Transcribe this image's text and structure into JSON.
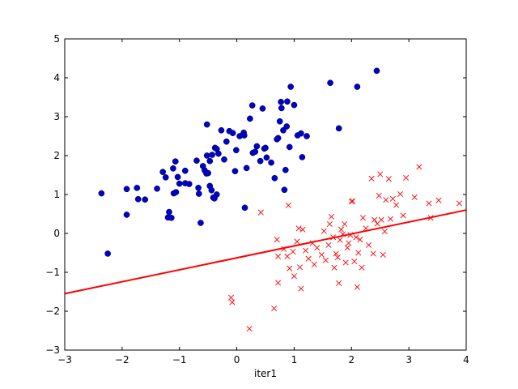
{
  "chart_data": {
    "type": "scatter",
    "title": "",
    "xlabel": "iter1",
    "ylabel": "",
    "xlim": [
      -3,
      4
    ],
    "ylim": [
      -3,
      5
    ],
    "xticks": [
      "−3",
      "−2",
      "−1",
      "0",
      "1",
      "2",
      "3",
      "4"
    ],
    "yticks": [
      "−3",
      "−2",
      "−1",
      "0",
      "1",
      "2",
      "3",
      "4",
      "5"
    ],
    "grid": false,
    "legend": "none",
    "series": [
      {
        "marker": "circle",
        "color": "#0000cc",
        "points": [
          [
            -2.36,
            1.03
          ],
          [
            -2.25,
            -0.52
          ],
          [
            -1.92,
            1.14
          ],
          [
            -1.92,
            0.48
          ],
          [
            -1.74,
            1.17
          ],
          [
            -1.72,
            0.88
          ],
          [
            -1.6,
            0.87
          ],
          [
            -1.39,
            1.15
          ],
          [
            -1.29,
            1.58
          ],
          [
            -1.24,
            1.44
          ],
          [
            -1.18,
            0.55
          ],
          [
            -1.2,
            0.41
          ],
          [
            -1.14,
            0.4
          ],
          [
            -1.11,
            1.67
          ],
          [
            -1.1,
            1.03
          ],
          [
            -1.07,
            1.85
          ],
          [
            -1.06,
            1.06
          ],
          [
            -1.03,
            1.45
          ],
          [
            -1.0,
            1.28
          ],
          [
            -0.9,
            1.61
          ],
          [
            -0.9,
            1.29
          ],
          [
            -0.83,
            1.27
          ],
          [
            -0.7,
            1.87
          ],
          [
            -0.67,
            1.17
          ],
          [
            -0.66,
            1.02
          ],
          [
            -0.63,
            0.27
          ],
          [
            -0.59,
            1.73
          ],
          [
            -0.56,
            1.62
          ],
          [
            -0.53,
            1.54
          ],
          [
            -0.52,
            2.0
          ],
          [
            -0.52,
            2.8
          ],
          [
            -0.5,
            1.55
          ],
          [
            -0.47,
            1.22
          ],
          [
            -0.47,
            1.86
          ],
          [
            -0.44,
            1.11
          ],
          [
            -0.43,
            2.02
          ],
          [
            -0.41,
            0.92
          ],
          [
            -0.39,
            0.9
          ],
          [
            -0.38,
            2.2
          ],
          [
            -0.35,
            1.0
          ],
          [
            -0.35,
            2.17
          ],
          [
            -0.32,
            2.05
          ],
          [
            -0.27,
            2.65
          ],
          [
            -0.22,
            1.9
          ],
          [
            -0.18,
            2.36
          ],
          [
            -0.13,
            2.63
          ],
          [
            -0.07,
            2.58
          ],
          [
            -0.03,
            1.6
          ],
          [
            -0.01,
            2.14
          ],
          [
            0.05,
            2.5
          ],
          [
            0.12,
            2.59
          ],
          [
            0.13,
            2.52
          ],
          [
            0.14,
            0.66
          ],
          [
            0.17,
            1.68
          ],
          [
            0.23,
            2.95
          ],
          [
            0.27,
            3.29
          ],
          [
            0.28,
            2.07
          ],
          [
            0.32,
            2.1
          ],
          [
            0.35,
            2.24
          ],
          [
            0.41,
            1.86
          ],
          [
            0.45,
            3.21
          ],
          [
            0.48,
            2.18
          ],
          [
            0.5,
            2.2
          ],
          [
            0.52,
            1.95
          ],
          [
            0.6,
            1.82
          ],
          [
            0.66,
            1.42
          ],
          [
            0.7,
            2.42
          ],
          [
            0.72,
            2.45
          ],
          [
            0.75,
            2.88
          ],
          [
            0.77,
            3.38
          ],
          [
            0.78,
            3.22
          ],
          [
            0.81,
            2.65
          ],
          [
            0.83,
            1.12
          ],
          [
            0.85,
            1.63
          ],
          [
            0.87,
            2.75
          ],
          [
            0.88,
            3.39
          ],
          [
            0.92,
            2.22
          ],
          [
            0.94,
            3.77
          ],
          [
            1.0,
            3.3
          ],
          [
            1.06,
            2.52
          ],
          [
            1.12,
            2.57
          ],
          [
            1.14,
            1.96
          ],
          [
            1.22,
            2.5
          ],
          [
            1.63,
            3.87
          ],
          [
            1.78,
            2.7
          ],
          [
            2.1,
            3.77
          ],
          [
            2.44,
            4.18
          ]
        ]
      },
      {
        "marker": "x",
        "color": "#ff0000",
        "points": [
          [
            -0.1,
            -1.65
          ],
          [
            -0.08,
            -1.77
          ],
          [
            0.22,
            -2.45
          ],
          [
            0.42,
            0.54
          ],
          [
            0.65,
            -1.93
          ],
          [
            0.7,
            -0.16
          ],
          [
            0.72,
            -0.59
          ],
          [
            0.72,
            -1.27
          ],
          [
            0.82,
            -0.4
          ],
          [
            0.88,
            -0.59
          ],
          [
            0.9,
            0.72
          ],
          [
            0.92,
            -0.9
          ],
          [
            0.98,
            -0.47
          ],
          [
            1.0,
            -1.1
          ],
          [
            1.05,
            -0.21
          ],
          [
            1.08,
            0.13
          ],
          [
            1.1,
            -0.87
          ],
          [
            1.12,
            -1.42
          ],
          [
            1.15,
            0.1
          ],
          [
            1.2,
            -0.44
          ],
          [
            1.25,
            -0.65
          ],
          [
            1.32,
            -0.25
          ],
          [
            1.35,
            -0.8
          ],
          [
            1.4,
            -0.37
          ],
          [
            1.48,
            -0.55
          ],
          [
            1.52,
            0.06
          ],
          [
            1.55,
            -0.69
          ],
          [
            1.6,
            -0.3
          ],
          [
            1.62,
            0.24
          ],
          [
            1.65,
            0.43
          ],
          [
            1.68,
            -0.1
          ],
          [
            1.7,
            -0.88
          ],
          [
            1.73,
            -0.52
          ],
          [
            1.76,
            -0.62
          ],
          [
            1.78,
            -1.28
          ],
          [
            1.8,
            -0.17
          ],
          [
            1.82,
            0.1
          ],
          [
            1.85,
            -0.02
          ],
          [
            1.88,
            0.24
          ],
          [
            1.9,
            -0.75
          ],
          [
            1.93,
            -0.37
          ],
          [
            1.95,
            -0.25
          ],
          [
            1.98,
            -0.04
          ],
          [
            2.0,
            0.82
          ],
          [
            2.02,
            0.83
          ],
          [
            2.05,
            -0.72
          ],
          [
            2.08,
            -0.1
          ],
          [
            2.1,
            -1.38
          ],
          [
            2.12,
            -0.5
          ],
          [
            2.15,
            -0.16
          ],
          [
            2.18,
            -0.88
          ],
          [
            2.2,
            0.4
          ],
          [
            2.25,
            0.13
          ],
          [
            2.3,
            -0.3
          ],
          [
            2.35,
            1.41
          ],
          [
            2.38,
            -0.52
          ],
          [
            2.4,
            0.35
          ],
          [
            2.45,
            0.25
          ],
          [
            2.48,
            0.97
          ],
          [
            2.5,
            1.52
          ],
          [
            2.52,
            0.35
          ],
          [
            2.55,
            -0.55
          ],
          [
            2.58,
            0.05
          ],
          [
            2.6,
            0.86
          ],
          [
            2.65,
            1.4
          ],
          [
            2.68,
            0.37
          ],
          [
            2.72,
            0.89
          ],
          [
            2.78,
            0.73
          ],
          [
            2.85,
            1.01
          ],
          [
            2.9,
            0.46
          ],
          [
            2.95,
            1.43
          ],
          [
            3.1,
            0.93
          ],
          [
            3.18,
            1.71
          ],
          [
            3.35,
            0.77
          ],
          [
            3.38,
            0.4
          ],
          [
            3.52,
            0.85
          ],
          [
            3.88,
            0.77
          ]
        ]
      }
    ],
    "line": {
      "color": "#ff0000",
      "x": [
        -3,
        4
      ],
      "y": [
        -1.55,
        0.6
      ]
    }
  }
}
